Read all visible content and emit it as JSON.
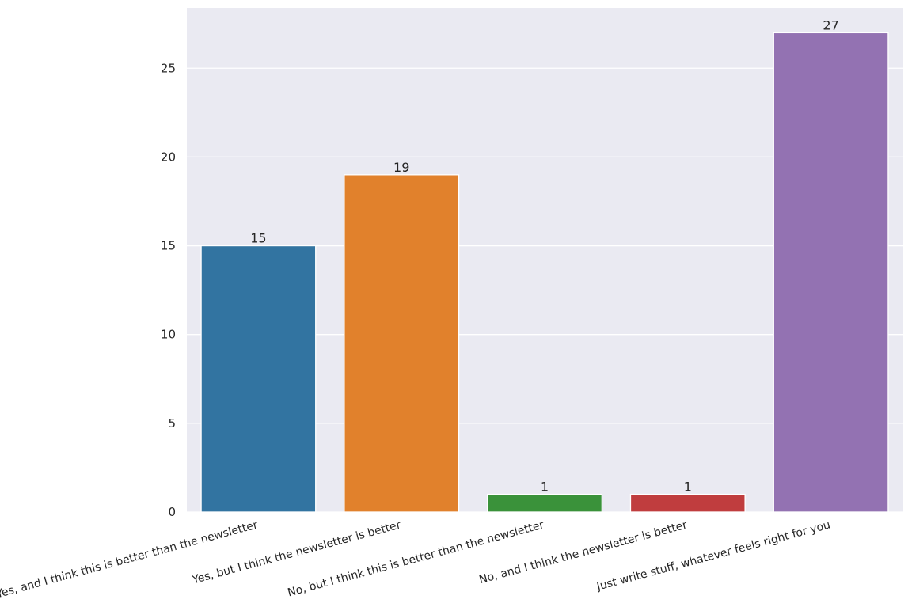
{
  "chart_data": {
    "type": "bar",
    "categories": [
      "Yes, and I think this is better than the newsletter",
      "Yes, but I think the newsletter is better",
      "No, but I think this is better than the newsletter",
      "No, and I think the newsletter is better",
      "Just write stuff, whatever feels right for you"
    ],
    "values": [
      15,
      19,
      1,
      1,
      27
    ],
    "colors": [
      "#3274a1",
      "#e1812c",
      "#3a923a",
      "#c03d3e",
      "#9372b2"
    ],
    "ylim": [
      0,
      28.4
    ],
    "yticks": [
      0,
      5,
      10,
      15,
      20,
      25
    ],
    "grid": true
  }
}
